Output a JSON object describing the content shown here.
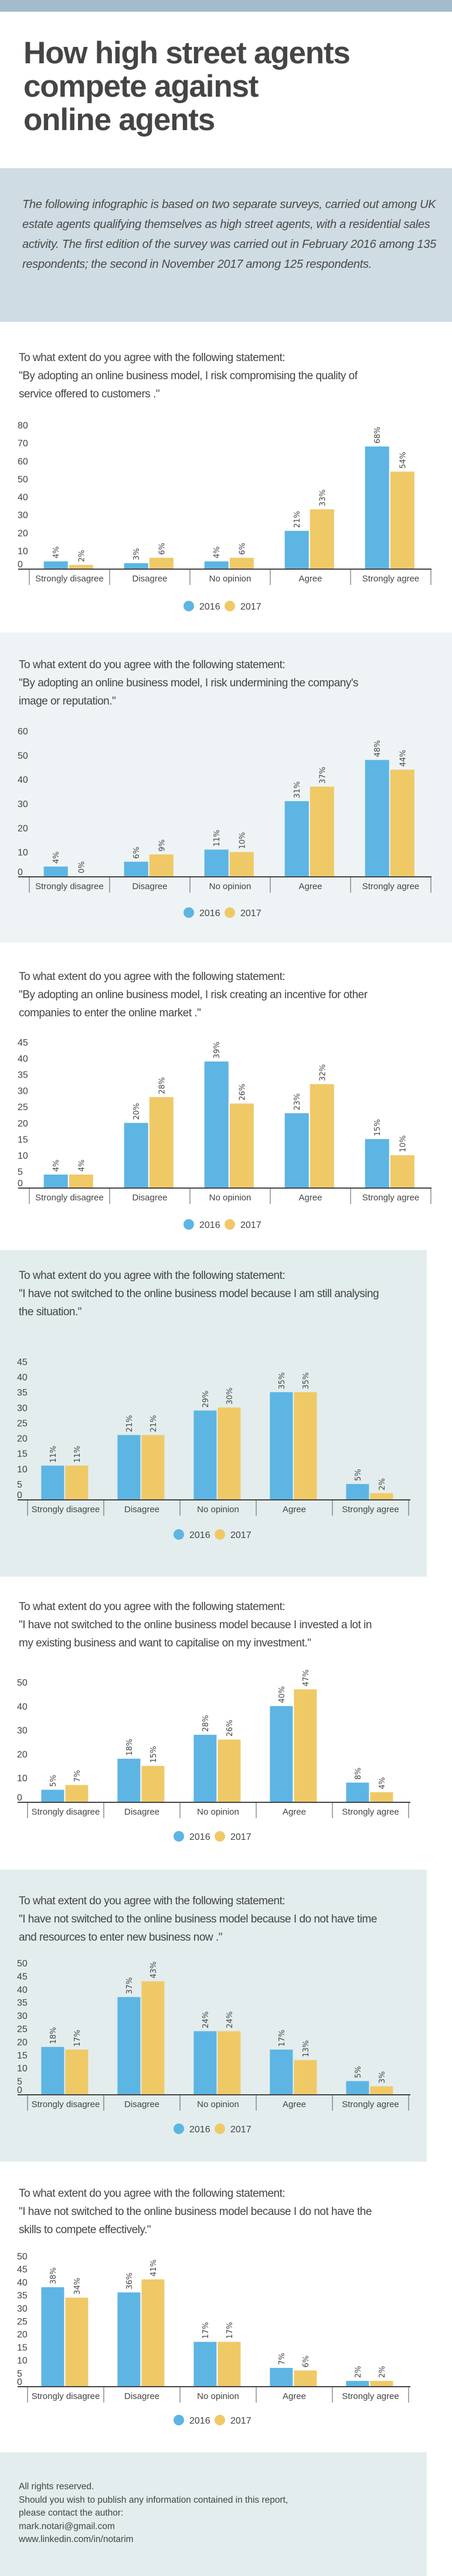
{
  "header": {
    "title_lines": [
      "How high street agents",
      "compete against",
      "online agents"
    ],
    "intro": "The following infographic is based on two separate surveys, carried out among UK estate agents qualifying themselves as high street agents, with a residential sales activity. The first edition of the survey was carried out in February 2016 among 135 respondents; the second in November 2017 among 125 respondents."
  },
  "colors": {
    "series_2016": "#5db5e4",
    "series_2017": "#f0c967",
    "text": "#444444",
    "top_band": "#a3bccb",
    "intro_bg": "#cfdce4",
    "panel_bg": "#e3eded"
  },
  "chart_data": [
    {
      "type": "bar",
      "question": "To what extent do you agree with the following statement:",
      "statement_lines": [
        "\"By adopting an online business model, I risk compromising the quality of",
        "service offered to customers .\""
      ],
      "categories": [
        "Strongly disagree",
        "Disagree",
        "No opinion",
        "Agree",
        "Strongly agree"
      ],
      "series": [
        {
          "name": "2016",
          "values": [
            4,
            3,
            4,
            21,
            68
          ]
        },
        {
          "name": "2017",
          "values": [
            2,
            6,
            6,
            33,
            54
          ]
        }
      ],
      "yticks": [
        0,
        10,
        20,
        30,
        40,
        50,
        60,
        70,
        80
      ],
      "ylim": [
        0,
        80
      ],
      "grid": false,
      "legend": "bottom-center",
      "value_suffix": "%"
    },
    {
      "type": "bar",
      "question": "To what extent do you agree with the following statement:",
      "statement_lines": [
        "\"By adopting an online business model, I risk undermining the company's",
        "image or reputation.\""
      ],
      "categories": [
        "Strongly disagree",
        "Disagree",
        "No opinion",
        "Agree",
        "Strongly agree"
      ],
      "series": [
        {
          "name": "2016",
          "values": [
            4,
            6,
            11,
            31,
            48
          ]
        },
        {
          "name": "2017",
          "values": [
            0,
            9,
            10,
            37,
            44
          ]
        }
      ],
      "yticks": [
        0,
        10,
        20,
        30,
        40,
        50,
        60
      ],
      "ylim": [
        0,
        60
      ],
      "grid": false,
      "legend": "bottom-center",
      "value_suffix": "%"
    },
    {
      "type": "bar",
      "question": "To what extent do you agree with the following statement:",
      "statement_lines": [
        "\"By adopting an online business model, I risk creating an incentive for other",
        "companies to enter the online market .\""
      ],
      "categories": [
        "Strongly disagree",
        "Disagree",
        "No opinion",
        "Agree",
        "Strongly agree"
      ],
      "series": [
        {
          "name": "2016",
          "values": [
            4,
            20,
            39,
            23,
            15
          ]
        },
        {
          "name": "2017",
          "values": [
            4,
            28,
            26,
            32,
            10
          ]
        }
      ],
      "yticks": [
        0,
        5,
        10,
        15,
        20,
        25,
        30,
        35,
        40,
        45
      ],
      "ylim": [
        0,
        45
      ],
      "grid": false,
      "legend": "bottom-center",
      "value_suffix": "%"
    },
    {
      "type": "bar",
      "question": "To what extent do you agree with the following statement:",
      "statement_lines": [
        "\"I have not switched to the online business model because I am still analysing",
        "the situation.\""
      ],
      "categories": [
        "Strongly disagree",
        "Disagree",
        "No opinion",
        "Agree",
        "Strongly agree"
      ],
      "series": [
        {
          "name": "2016",
          "values": [
            11,
            21,
            29,
            35,
            5
          ]
        },
        {
          "name": "2017",
          "values": [
            11,
            21,
            30,
            35,
            2
          ]
        }
      ],
      "yticks": [
        0,
        5,
        10,
        15,
        20,
        25,
        30,
        35,
        40,
        45
      ],
      "ylim": [
        0,
        45
      ],
      "grid": false,
      "legend": "bottom-center",
      "value_suffix": "%"
    },
    {
      "type": "bar",
      "question": "To what extent do you agree with the following statement:",
      "statement_lines": [
        "\"I have not switched to the online business model because I invested a lot in",
        "my existing business and want to capitalise on my investment.\""
      ],
      "categories": [
        "Strongly disagree",
        "Disagree",
        "No opinion",
        "Agree",
        "Strongly agree"
      ],
      "series": [
        {
          "name": "2016",
          "values": [
            5,
            18,
            28,
            40,
            8
          ]
        },
        {
          "name": "2017",
          "values": [
            7,
            15,
            26,
            47,
            4
          ]
        }
      ],
      "yticks": [
        0,
        10,
        20,
        30,
        40,
        50
      ],
      "ylim": [
        0,
        50
      ],
      "grid": false,
      "legend": "bottom-center",
      "value_suffix": "%"
    },
    {
      "type": "bar",
      "question": "To what extent do you agree with the following statement:",
      "statement_lines": [
        "\"I have not switched to the online business model because I do not have time",
        "and resources to enter new business now .\""
      ],
      "categories": [
        "Strongly disagree",
        "Disagree",
        "No opinion",
        "Agree",
        "Strongly agree"
      ],
      "series": [
        {
          "name": "2016",
          "values": [
            18,
            37,
            24,
            17,
            5
          ]
        },
        {
          "name": "2017",
          "values": [
            17,
            43,
            24,
            13,
            3
          ]
        }
      ],
      "yticks": [
        0,
        5,
        10,
        15,
        20,
        25,
        30,
        35,
        40,
        45,
        50
      ],
      "ylim": [
        0,
        50
      ],
      "grid": false,
      "legend": "bottom-center",
      "value_suffix": "%"
    },
    {
      "type": "bar",
      "question": "To what extent do you agree with the following statement:",
      "statement_lines": [
        "\"I have not switched to the online business model because I do not have the",
        "skills to compete effectively.\""
      ],
      "categories": [
        "Strongly disagree",
        "Disagree",
        "No opinion",
        "Agree",
        "Strongly agree"
      ],
      "series": [
        {
          "name": "2016",
          "values": [
            38,
            36,
            17,
            7,
            2
          ]
        },
        {
          "name": "2017",
          "values": [
            34,
            41,
            17,
            6,
            2
          ]
        }
      ],
      "yticks": [
        0,
        5,
        10,
        15,
        20,
        25,
        30,
        35,
        40,
        45,
        50
      ],
      "ylim": [
        0,
        50
      ],
      "grid": false,
      "legend": "bottom-center",
      "value_suffix": "%"
    }
  ],
  "footer": {
    "lines": [
      "All rights reserved.",
      "Should you wish to publish any information contained in this report,",
      "please contact the author:",
      "mark.notari@gmail.com",
      "www.linkedin.com/in/notarim"
    ]
  }
}
